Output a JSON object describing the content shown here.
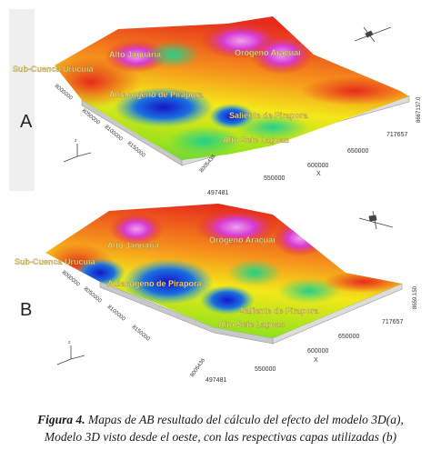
{
  "panels": [
    {
      "letter": "A",
      "labels": {
        "alto_januaria": "Alto Januária",
        "orogeno": "Orógeno Araçuaí",
        "sub_cuenca": "Sub-Cuenca Urucuia",
        "aulacogeno": "Aulacogeno de Pirapora",
        "saliente": "Saliente de Pirapora",
        "alto_sete": "Alto Sete Lagoas"
      },
      "x_axis": {
        "label": "X",
        "ticks": [
          "497481",
          "550000",
          "600000",
          "650000",
          "717657"
        ]
      },
      "y_left_ticks": [
        "8000000",
        "8050000",
        "8100000",
        "8150000"
      ],
      "y_right_tick": "8667137.0",
      "corner_tick": "8005436"
    },
    {
      "letter": "B",
      "labels": {
        "alto_januaria": "Alto Januária",
        "orogeno": "Orógeno Araçuaí",
        "sub_cuenca": "Sub-Cuenca Urucuia",
        "aulacogeno": "Aulacogeno de Pirapora",
        "saliente": "Saliente de Pirapora",
        "alto_sete": "Alto Sete Lagoas"
      },
      "x_axis": {
        "label": "X",
        "ticks": [
          "497481",
          "550000",
          "600000",
          "650000",
          "717657"
        ]
      },
      "y_left_ticks": [
        "8000000",
        "8050000",
        "8100000",
        "8150000"
      ],
      "y_right_tick": "8659.150",
      "corner_tick": "8005436"
    }
  ],
  "caption": {
    "figure_label": "Figura 4.",
    "text": "Mapas de AB resultado del cálculo del efecto del modelo 3D(a), Modelo 3D visto desde el oeste, con las respectivas capas utilizadas (b)"
  },
  "colors": {
    "surface_stops": [
      "#1515c8",
      "#1aa7e8",
      "#22d08c",
      "#9be21c",
      "#f3e81a",
      "#f6921c",
      "#e62a1c",
      "#d63cd6"
    ],
    "label_text": "#f7e08a",
    "panel_bg": "#efefef"
  }
}
